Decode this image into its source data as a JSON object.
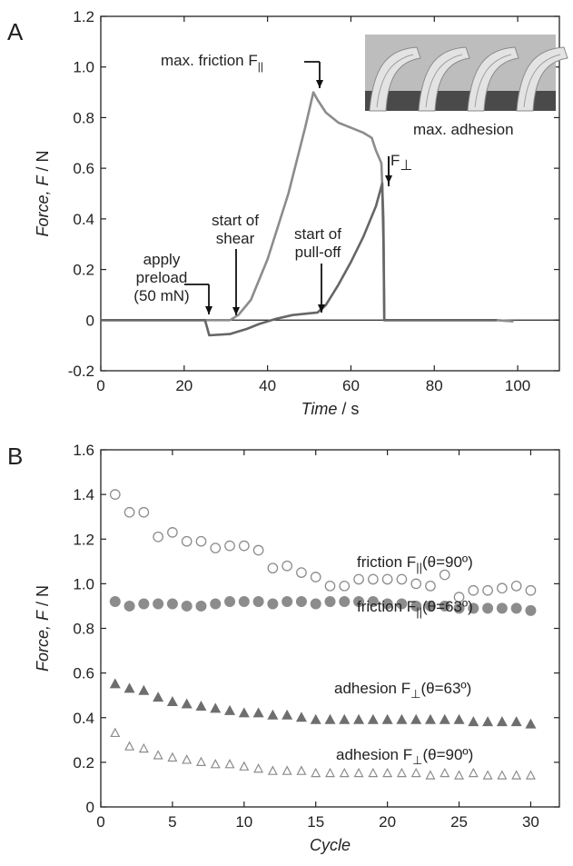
{
  "chart_data": [
    {
      "panel": "A",
      "type": "line",
      "xlabel_italic": "Time",
      "xlabel_unit": " / s",
      "ylabel_italic": "Force, F",
      "ylabel_unit": " / N",
      "xlim": [
        0,
        110
      ],
      "ylim": [
        -0.2,
        1.2
      ],
      "xticks": [
        0,
        20,
        40,
        60,
        80,
        100
      ],
      "yticks": [
        -0.2,
        0,
        0.2,
        0.4,
        0.6,
        0.8,
        1.0,
        1.2
      ],
      "ytick_labels": [
        "-0.2",
        "0",
        "0.2",
        "0.4",
        "0.6",
        "0.8",
        "1.0",
        "1.2"
      ],
      "series": [
        {
          "key": "friction",
          "color": "#8c8c8c",
          "points": [
            [
              0,
              0
            ],
            [
              25,
              0
            ],
            [
              26,
              0
            ],
            [
              29,
              0
            ],
            [
              31,
              0
            ],
            [
              33,
              0.02
            ],
            [
              36,
              0.08
            ],
            [
              40,
              0.24
            ],
            [
              45,
              0.5
            ],
            [
              49,
              0.76
            ],
            [
              51,
              0.9
            ],
            [
              52,
              0.87
            ],
            [
              54,
              0.82
            ],
            [
              57,
              0.78
            ],
            [
              60,
              0.76
            ],
            [
              63,
              0.74
            ],
            [
              65,
              0.72
            ],
            [
              66,
              0.67
            ],
            [
              67.3,
              0.62
            ],
            [
              67.8,
              0.4
            ],
            [
              68,
              0.0
            ],
            [
              75,
              0.0
            ],
            [
              95,
              0.0
            ],
            [
              99,
              -0.005
            ]
          ]
        },
        {
          "key": "adhesion",
          "color": "#666666",
          "points": [
            [
              0,
              0
            ],
            [
              25,
              0
            ],
            [
              26,
              -0.06
            ],
            [
              31,
              -0.055
            ],
            [
              33,
              -0.045
            ],
            [
              35,
              -0.035
            ],
            [
              38,
              -0.015
            ],
            [
              42,
              0.005
            ],
            [
              46,
              0.02
            ],
            [
              50,
              0.027
            ],
            [
              52,
              0.03
            ],
            [
              54,
              0.06
            ],
            [
              57,
              0.14
            ],
            [
              60,
              0.23
            ],
            [
              63,
              0.33
            ],
            [
              66,
              0.45
            ],
            [
              67.5,
              0.54
            ],
            [
              67.8,
              0.3
            ],
            [
              68,
              0.0
            ],
            [
              80,
              0.0
            ],
            [
              95,
              0.0
            ]
          ]
        }
      ],
      "annotations": [
        {
          "id": "preload",
          "lines": [
            "apply",
            "preload",
            "(50 mN)"
          ]
        },
        {
          "id": "shear",
          "lines": [
            "start of",
            "shear"
          ]
        },
        {
          "id": "pulloff",
          "lines": [
            "start of",
            "pull-off"
          ]
        },
        {
          "id": "maxfric",
          "text": "max. friction F"
        },
        {
          "id": "maxadh",
          "text": "max. adhesion"
        },
        {
          "id": "fperp",
          "text": "F"
        }
      ]
    },
    {
      "panel": "B",
      "type": "scatter",
      "xlabel_italic": "Cycle",
      "ylabel_italic": "Force, F",
      "ylabel_unit": " / N",
      "xlim": [
        0,
        32
      ],
      "ylim": [
        0,
        1.6
      ],
      "xticks": [
        0,
        5,
        10,
        15,
        20,
        25,
        30
      ],
      "yticks": [
        0,
        0.2,
        0.4,
        0.6,
        0.8,
        1.0,
        1.2,
        1.4,
        1.6
      ],
      "ytick_labels": [
        "0",
        "0.2",
        "0.4",
        "0.6",
        "0.8",
        "1.0",
        "1.2",
        "1.4",
        "1.6"
      ],
      "x": [
        1,
        2,
        3,
        4,
        5,
        6,
        7,
        8,
        9,
        10,
        11,
        12,
        13,
        14,
        15,
        16,
        17,
        18,
        19,
        20,
        21,
        22,
        23,
        24,
        25,
        26,
        27,
        28,
        29,
        30
      ],
      "series": [
        {
          "label": "friction F||(θ=90º)",
          "marker": "circle-open",
          "color": "#8c8c8c",
          "values": [
            1.4,
            1.32,
            1.32,
            1.21,
            1.23,
            1.19,
            1.19,
            1.16,
            1.17,
            1.17,
            1.15,
            1.07,
            1.08,
            1.05,
            1.03,
            0.99,
            0.99,
            1.02,
            1.02,
            1.02,
            1.02,
            1.0,
            0.99,
            1.04,
            0.94,
            0.97,
            0.97,
            0.98,
            0.99,
            0.97
          ]
        },
        {
          "label": "friction F||(θ=63º)",
          "marker": "circle-filled",
          "color": "#8c8c8c",
          "values": [
            0.92,
            0.9,
            0.91,
            0.91,
            0.91,
            0.9,
            0.9,
            0.91,
            0.92,
            0.92,
            0.92,
            0.91,
            0.92,
            0.92,
            0.91,
            0.92,
            0.92,
            0.92,
            0.92,
            0.91,
            0.91,
            0.9,
            0.9,
            0.9,
            0.89,
            0.89,
            0.89,
            0.89,
            0.89,
            0.88
          ]
        },
        {
          "label": "adhesion F⊥(θ=63º)",
          "marker": "triangle-filled",
          "color": "#6e6e6e",
          "values": [
            0.55,
            0.53,
            0.52,
            0.49,
            0.47,
            0.46,
            0.45,
            0.44,
            0.43,
            0.42,
            0.42,
            0.41,
            0.41,
            0.4,
            0.39,
            0.39,
            0.39,
            0.39,
            0.39,
            0.39,
            0.39,
            0.39,
            0.39,
            0.39,
            0.39,
            0.38,
            0.38,
            0.38,
            0.38,
            0.37
          ]
        },
        {
          "label": "adhesion F⊥(θ=90º)",
          "marker": "triangle-open",
          "color": "#8c8c8c",
          "values": [
            0.33,
            0.27,
            0.26,
            0.23,
            0.22,
            0.21,
            0.2,
            0.19,
            0.19,
            0.18,
            0.17,
            0.16,
            0.16,
            0.16,
            0.15,
            0.15,
            0.15,
            0.15,
            0.15,
            0.15,
            0.15,
            0.15,
            0.14,
            0.15,
            0.14,
            0.15,
            0.14,
            0.14,
            0.14,
            0.14
          ]
        }
      ],
      "legend_labels": [
        {
          "word": "friction F",
          "sub": "||",
          "rest": "(θ=90º)"
        },
        {
          "word": "friction F",
          "sub": "||",
          "rest": "(θ=63º)"
        },
        {
          "word": "adhesion F",
          "sub": "⊥",
          "rest": "(θ=63º)"
        },
        {
          "word": "adhesion F",
          "sub": "⊥",
          "rest": "(θ=90º)"
        }
      ]
    }
  ]
}
